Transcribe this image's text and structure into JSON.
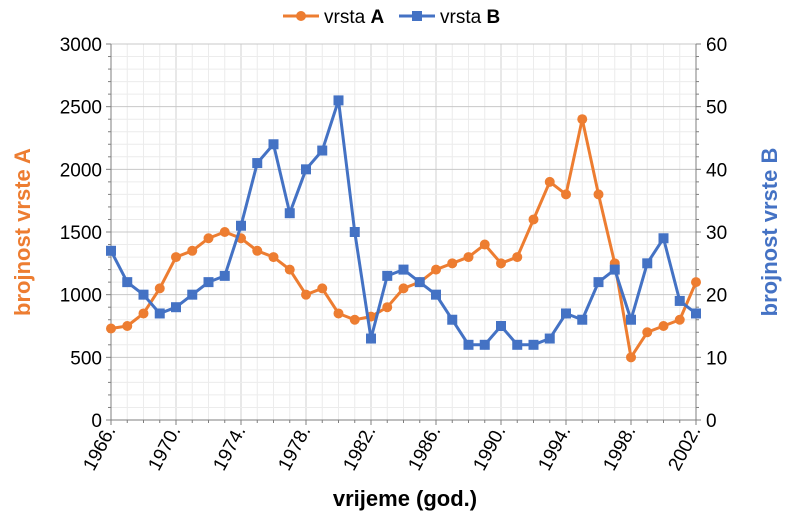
{
  "chart_data": {
    "type": "line",
    "title": "",
    "xlabel": "vrijeme (god.)",
    "ylabel_left": "brojnost vrste A",
    "ylabel_right": "brojnost vrste B",
    "ylim_left": [
      0,
      3000
    ],
    "ylim_right": [
      0,
      60
    ],
    "yticks_left": [
      "0",
      "500",
      "1000",
      "1500",
      "2000",
      "2500",
      "3000"
    ],
    "yticks_right": [
      "0",
      "10",
      "20",
      "30",
      "40",
      "50",
      "60"
    ],
    "xlim": [
      1966,
      2002
    ],
    "xticks": [
      "1966.",
      "1970.",
      "1974.",
      "1978.",
      "1982.",
      "1986.",
      "1990.",
      "1994.",
      "1998.",
      "2002."
    ],
    "grid": true,
    "legend_position": "top-center",
    "x": [
      1966,
      1967,
      1968,
      1969,
      1970,
      1971,
      1972,
      1973,
      1974,
      1975,
      1976,
      1977,
      1978,
      1979,
      1980,
      1981,
      1982,
      1983,
      1984,
      1985,
      1986,
      1987,
      1988,
      1989,
      1990,
      1991,
      1992,
      1993,
      1994,
      1995,
      1996,
      1997,
      1998,
      1999,
      2000,
      2001,
      2002
    ],
    "series": [
      {
        "name_prefix": "vrsta ",
        "name_letter": "A",
        "axis": "left",
        "color": "#ED7D31",
        "marker": "circle",
        "values": [
          730,
          750,
          850,
          1050,
          1300,
          1350,
          1450,
          1500,
          1450,
          1350,
          1300,
          1200,
          1000,
          1050,
          850,
          800,
          825,
          900,
          1050,
          1100,
          1200,
          1250,
          1300,
          1400,
          1250,
          1300,
          1600,
          1900,
          1800,
          2400,
          1800,
          1250,
          500,
          700,
          750,
          800,
          1100
        ]
      },
      {
        "name_prefix": "vrsta ",
        "name_letter": "B",
        "axis": "right",
        "color": "#4472C4",
        "marker": "square",
        "values": [
          27,
          22,
          20,
          17,
          18,
          20,
          22,
          23,
          31,
          41,
          44,
          33,
          40,
          43,
          51,
          30,
          13,
          23,
          24,
          22,
          20,
          16,
          12,
          12,
          15,
          12,
          12,
          13,
          17,
          16,
          22,
          24,
          16,
          25,
          29,
          19,
          17
        ]
      }
    ]
  }
}
